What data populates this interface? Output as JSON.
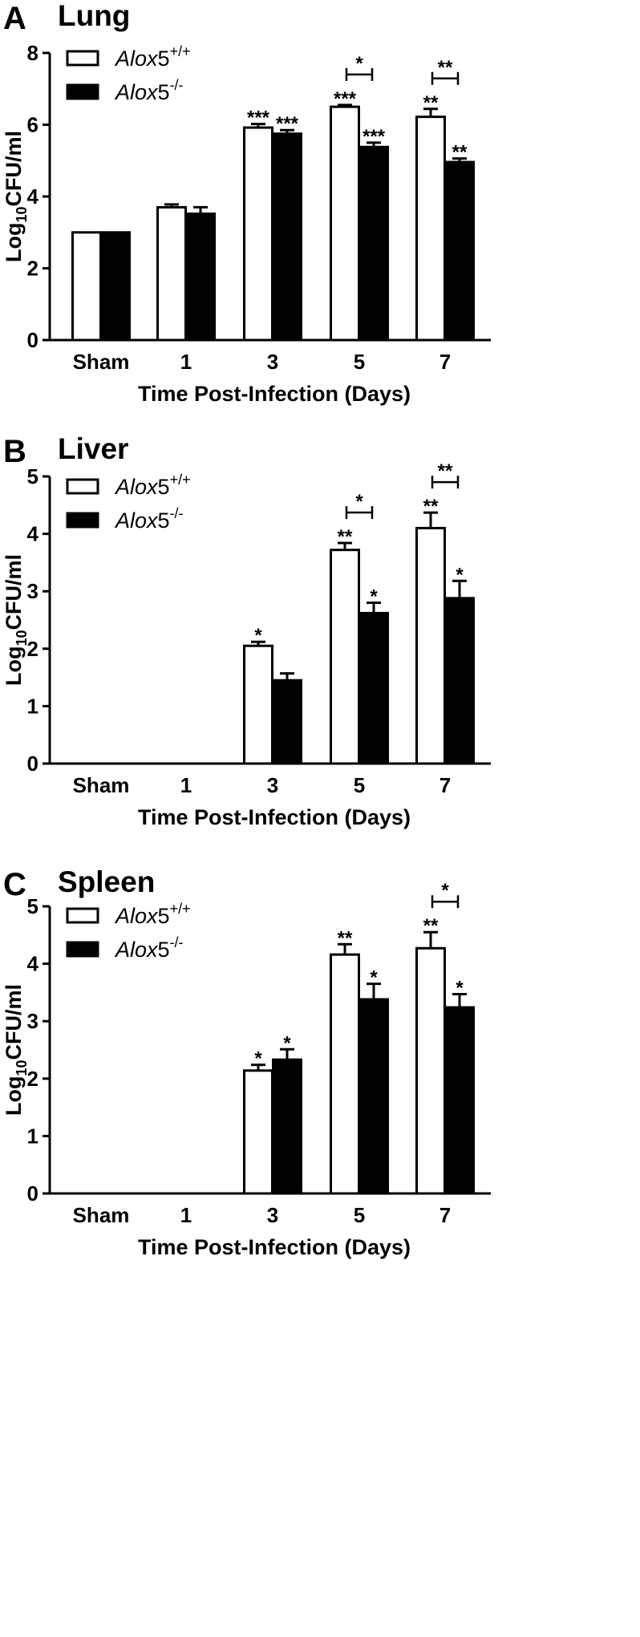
{
  "chart_data": [
    {
      "type": "bar",
      "panel_label": "A",
      "title": "Lung",
      "xlabel": "Time Post-Infection (Days)",
      "ylabel": "Log10CFU/ml",
      "ylim": [
        0,
        8
      ],
      "yticks": [
        "0",
        "2",
        "4",
        "6",
        "8"
      ],
      "categories": [
        "Sham",
        "1",
        "3",
        "5",
        "7"
      ],
      "legend_position": "top-left",
      "series": [
        {
          "name": "Alox5+/+",
          "italic": "Alox",
          "plain": "5",
          "sup": "+/+",
          "fill": "#ffffff",
          "values": [
            3.0,
            3.7,
            5.92,
            6.5,
            6.22
          ],
          "errors": [
            0,
            0.08,
            0.1,
            0.05,
            0.22
          ],
          "sig": [
            "",
            "",
            "***",
            "***",
            "**"
          ]
        },
        {
          "name": "Alox5-/-",
          "italic": "Alox",
          "plain": "5",
          "sup": "-/-",
          "fill": "#000000",
          "values": [
            3.0,
            3.52,
            5.75,
            5.38,
            4.96
          ],
          "errors": [
            0,
            0.18,
            0.1,
            0.12,
            0.1
          ],
          "sig": [
            "",
            "",
            "***",
            "***",
            "**"
          ]
        }
      ],
      "brackets": [
        {
          "category": "5",
          "label": "*"
        },
        {
          "category": "7",
          "label": "**"
        }
      ]
    },
    {
      "type": "bar",
      "panel_label": "B",
      "title": "Liver",
      "xlabel": "Time Post-Infection (Days)",
      "ylabel": "Log10CFU/ml",
      "ylim": [
        0,
        5
      ],
      "yticks": [
        "0",
        "1",
        "2",
        "3",
        "4",
        "5"
      ],
      "categories": [
        "Sham",
        "1",
        "3",
        "5",
        "7"
      ],
      "legend_position": "top-left",
      "series": [
        {
          "name": "Alox5+/+",
          "italic": "Alox",
          "plain": "5",
          "sup": "+/+",
          "fill": "#ffffff",
          "values": [
            0,
            0,
            2.05,
            3.72,
            4.1
          ],
          "errors": [
            0,
            0,
            0.07,
            0.12,
            0.27
          ],
          "sig": [
            "",
            "",
            "*",
            "**",
            "**"
          ]
        },
        {
          "name": "Alox5-/-",
          "italic": "Alox",
          "plain": "5",
          "sup": "-/-",
          "fill": "#000000",
          "values": [
            0,
            0,
            1.45,
            2.62,
            2.88
          ],
          "errors": [
            0,
            0,
            0.12,
            0.18,
            0.3
          ],
          "sig": [
            "",
            "",
            "",
            "*",
            "*"
          ]
        }
      ],
      "brackets": [
        {
          "category": "5",
          "label": "*"
        },
        {
          "category": "7",
          "label": "**"
        }
      ]
    },
    {
      "type": "bar",
      "panel_label": "C",
      "title": "Spleen",
      "xlabel": "Time Post-Infection (Days)",
      "ylabel": "Log10CFU/ml",
      "ylim": [
        0,
        5
      ],
      "yticks": [
        "0",
        "1",
        "2",
        "3",
        "4",
        "5"
      ],
      "categories": [
        "Sham",
        "1",
        "3",
        "5",
        "7"
      ],
      "legend_position": "top-left",
      "series": [
        {
          "name": "Alox5+/+",
          "italic": "Alox",
          "plain": "5",
          "sup": "+/+",
          "fill": "#ffffff",
          "values": [
            0,
            0,
            2.14,
            4.16,
            4.27
          ],
          "errors": [
            0,
            0,
            0.1,
            0.18,
            0.28
          ],
          "sig": [
            "",
            "",
            "*",
            "**",
            "**"
          ]
        },
        {
          "name": "Alox5-/-",
          "italic": "Alox",
          "plain": "5",
          "sup": "-/-",
          "fill": "#000000",
          "values": [
            0,
            0,
            2.33,
            3.38,
            3.24
          ],
          "errors": [
            0,
            0,
            0.18,
            0.27,
            0.23
          ],
          "sig": [
            "",
            "",
            "*",
            "*",
            "*"
          ]
        }
      ],
      "brackets": [
        {
          "category": "7",
          "label": "*"
        }
      ]
    }
  ]
}
